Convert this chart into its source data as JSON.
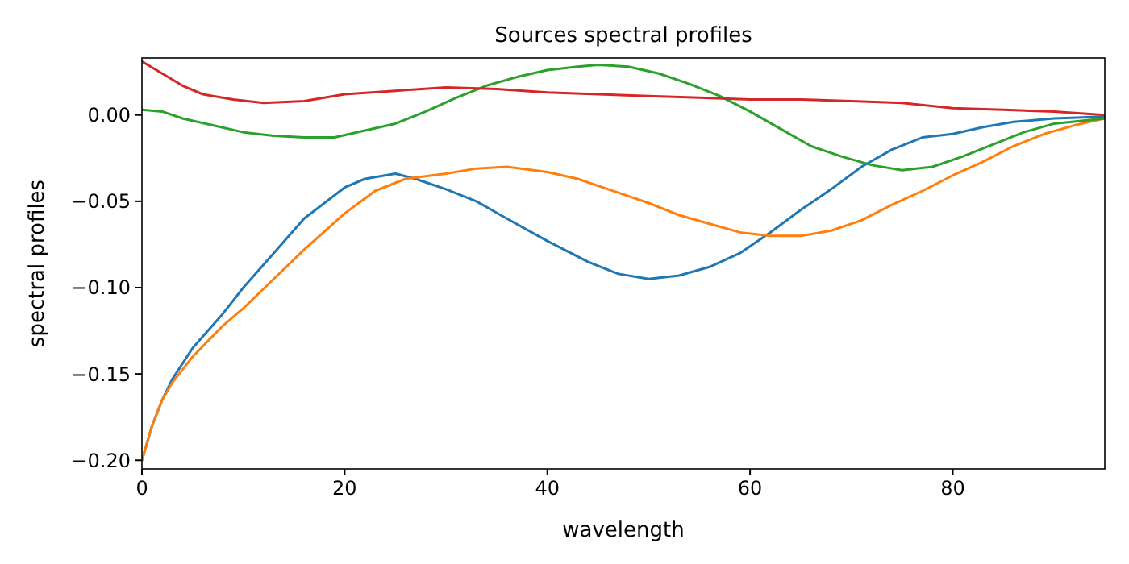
{
  "chart_data": {
    "type": "line",
    "title": "Sources spectral profiles",
    "xlabel": "wavelength",
    "ylabel": "spectral profiles",
    "xlim": [
      0,
      95
    ],
    "xticks": [
      0,
      20,
      40,
      60,
      80
    ],
    "ylim": [
      -0.205,
      0.033
    ],
    "yticks": [
      {
        "value": -0.2,
        "label": "−0.20"
      },
      {
        "value": -0.15,
        "label": "−0.15"
      },
      {
        "value": -0.1,
        "label": "−0.10"
      },
      {
        "value": -0.05,
        "label": "−0.05"
      },
      {
        "value": 0,
        "label": "0.00"
      }
    ],
    "grid": false,
    "line_style": "solid",
    "marker": "none",
    "series": [
      {
        "color": "#1f77b4",
        "x": [
          0,
          1,
          2,
          3,
          5,
          8,
          10,
          13,
          16,
          20,
          22,
          25,
          27,
          30,
          33,
          36,
          40,
          44,
          47,
          50,
          53,
          56,
          59,
          62,
          65,
          68,
          71,
          74,
          77,
          80,
          83,
          86,
          90,
          95
        ],
        "values": [
          -0.2,
          -0.18,
          -0.165,
          -0.153,
          -0.135,
          -0.115,
          -0.1,
          -0.08,
          -0.06,
          -0.042,
          -0.037,
          -0.034,
          -0.037,
          -0.043,
          -0.05,
          -0.06,
          -0.073,
          -0.085,
          -0.092,
          -0.095,
          -0.093,
          -0.088,
          -0.08,
          -0.068,
          -0.055,
          -0.043,
          -0.03,
          -0.02,
          -0.013,
          -0.011,
          -0.007,
          -0.004,
          -0.002,
          -0.001
        ]
      },
      {
        "color": "#ff7f0e",
        "x": [
          0,
          1,
          2,
          3,
          5,
          8,
          10,
          13,
          16,
          20,
          23,
          26,
          30,
          33,
          36,
          40,
          43,
          47,
          50,
          53,
          56,
          59,
          62,
          65,
          68,
          71,
          74,
          77,
          80,
          83,
          86,
          89,
          92,
          95
        ],
        "values": [
          -0.2,
          -0.18,
          -0.165,
          -0.155,
          -0.14,
          -0.122,
          -0.112,
          -0.095,
          -0.078,
          -0.057,
          -0.044,
          -0.037,
          -0.034,
          -0.031,
          -0.03,
          -0.033,
          -0.037,
          -0.045,
          -0.051,
          -0.058,
          -0.063,
          -0.068,
          -0.07,
          -0.07,
          -0.067,
          -0.061,
          -0.052,
          -0.044,
          -0.035,
          -0.027,
          -0.018,
          -0.011,
          -0.006,
          -0.002
        ]
      },
      {
        "color": "#2ca02c",
        "x": [
          0,
          2,
          4,
          7,
          10,
          13,
          16,
          19,
          22,
          25,
          28,
          31,
          34,
          37,
          40,
          43,
          45,
          48,
          51,
          54,
          57,
          60,
          63,
          66,
          69,
          72,
          75,
          78,
          81,
          84,
          87,
          90,
          95
        ],
        "values": [
          0.003,
          0.002,
          -0.002,
          -0.006,
          -0.01,
          -0.012,
          -0.013,
          -0.013,
          -0.009,
          -0.005,
          0.002,
          0.01,
          0.017,
          0.022,
          0.026,
          0.028,
          0.029,
          0.028,
          0.024,
          0.018,
          0.011,
          0.002,
          -0.008,
          -0.018,
          -0.024,
          -0.029,
          -0.032,
          -0.03,
          -0.024,
          -0.017,
          -0.01,
          -0.005,
          -0.002
        ]
      },
      {
        "color": "#d62728",
        "x": [
          0,
          2,
          4,
          6,
          9,
          12,
          16,
          20,
          25,
          30,
          35,
          40,
          45,
          50,
          55,
          60,
          65,
          70,
          75,
          80,
          85,
          90,
          95
        ],
        "values": [
          0.031,
          0.024,
          0.017,
          0.012,
          0.009,
          0.007,
          0.008,
          0.012,
          0.014,
          0.016,
          0.015,
          0.013,
          0.012,
          0.011,
          0.01,
          0.009,
          0.009,
          0.008,
          0.007,
          0.004,
          0.003,
          0.002,
          0
        ]
      }
    ]
  }
}
